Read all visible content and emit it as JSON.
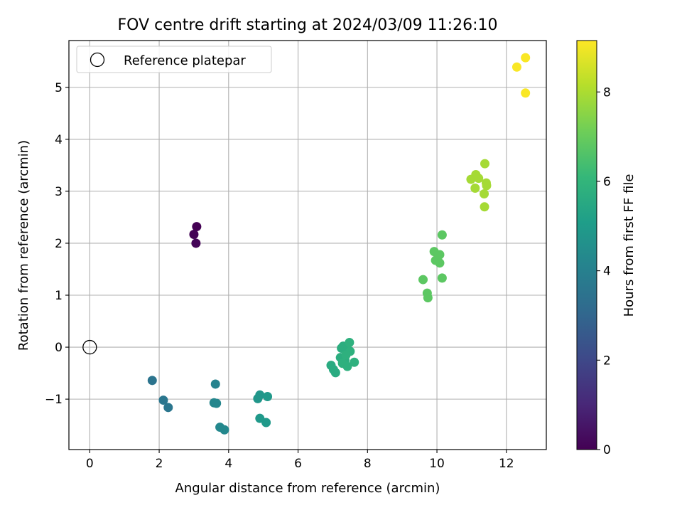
{
  "chart_data": {
    "type": "scatter",
    "title": "FOV centre drift starting at 2024/03/09 11:26:10",
    "xlabel": "Angular distance from reference (arcmin)",
    "ylabel": "Rotation from reference (arcmin)",
    "xlim": [
      -0.6,
      13.15
    ],
    "ylim": [
      -1.97,
      5.9
    ],
    "xticks": [
      0,
      2,
      4,
      6,
      8,
      10,
      12
    ],
    "xtick_labels": [
      "0",
      "2",
      "4",
      "6",
      "8",
      "10",
      "12"
    ],
    "yticks": [
      -1,
      0,
      1,
      2,
      3,
      4,
      5
    ],
    "ytick_labels": [
      "−1",
      "0",
      "1",
      "2",
      "3",
      "4",
      "5"
    ],
    "grid": true,
    "legend": {
      "placement": "top-left",
      "entries": [
        "Reference platepar"
      ]
    },
    "reference_point": {
      "x": 0,
      "y": 0
    },
    "colorbar": {
      "label": "Hours from first FF file",
      "range": [
        0,
        9.15
      ],
      "ticks": [
        0,
        2,
        4,
        6,
        8
      ],
      "tick_labels": [
        "0",
        "2",
        "4",
        "6",
        "8"
      ],
      "colormap": "viridis",
      "colormap_stops": [
        "#440154",
        "#482878",
        "#3e4989",
        "#31688e",
        "#26828e",
        "#1f9e89",
        "#35b779",
        "#6ece58",
        "#b5de2b",
        "#fde725"
      ]
    },
    "points": [
      {
        "x": 3.08,
        "y": 2.32,
        "t": 0.0
      },
      {
        "x": 3.0,
        "y": 2.17,
        "t": 0.05
      },
      {
        "x": 3.06,
        "y": 2.0,
        "t": 0.1
      },
      {
        "x": 1.8,
        "y": -0.64,
        "t": 3.5
      },
      {
        "x": 2.12,
        "y": -1.02,
        "t": 3.6
      },
      {
        "x": 2.26,
        "y": -1.16,
        "t": 3.6
      },
      {
        "x": 3.62,
        "y": -0.71,
        "t": 4.1
      },
      {
        "x": 3.58,
        "y": -1.07,
        "t": 4.2
      },
      {
        "x": 3.65,
        "y": -1.08,
        "t": 4.2
      },
      {
        "x": 3.75,
        "y": -1.54,
        "t": 4.3
      },
      {
        "x": 3.88,
        "y": -1.59,
        "t": 4.3
      },
      {
        "x": 4.9,
        "y": -0.92,
        "t": 4.8
      },
      {
        "x": 4.84,
        "y": -0.99,
        "t": 4.8
      },
      {
        "x": 5.12,
        "y": -0.95,
        "t": 4.9
      },
      {
        "x": 4.9,
        "y": -1.37,
        "t": 4.9
      },
      {
        "x": 5.08,
        "y": -1.45,
        "t": 4.9
      },
      {
        "x": 6.95,
        "y": -0.35,
        "t": 5.6
      },
      {
        "x": 7.02,
        "y": -0.43,
        "t": 5.6
      },
      {
        "x": 7.08,
        "y": -0.49,
        "t": 5.6
      },
      {
        "x": 7.25,
        "y": -0.02,
        "t": 5.7
      },
      {
        "x": 7.3,
        "y": 0.02,
        "t": 5.7
      },
      {
        "x": 7.42,
        "y": -0.05,
        "t": 5.7
      },
      {
        "x": 7.48,
        "y": 0.09,
        "t": 5.8
      },
      {
        "x": 7.22,
        "y": -0.2,
        "t": 5.7
      },
      {
        "x": 7.35,
        "y": -0.25,
        "t": 5.7
      },
      {
        "x": 7.5,
        "y": -0.08,
        "t": 5.8
      },
      {
        "x": 7.28,
        "y": -0.31,
        "t": 5.8
      },
      {
        "x": 7.42,
        "y": -0.37,
        "t": 5.8
      },
      {
        "x": 7.62,
        "y": -0.29,
        "t": 5.8
      },
      {
        "x": 7.38,
        "y": -0.15,
        "t": 5.8
      },
      {
        "x": 10.15,
        "y": 2.16,
        "t": 6.8
      },
      {
        "x": 9.92,
        "y": 1.84,
        "t": 6.8
      },
      {
        "x": 10.08,
        "y": 1.78,
        "t": 6.8
      },
      {
        "x": 9.96,
        "y": 1.67,
        "t": 6.8
      },
      {
        "x": 10.08,
        "y": 1.62,
        "t": 6.8
      },
      {
        "x": 9.6,
        "y": 1.3,
        "t": 6.8
      },
      {
        "x": 10.15,
        "y": 1.33,
        "t": 6.8
      },
      {
        "x": 9.72,
        "y": 1.04,
        "t": 6.8
      },
      {
        "x": 9.74,
        "y": 0.95,
        "t": 6.8
      },
      {
        "x": 11.38,
        "y": 3.53,
        "t": 7.9
      },
      {
        "x": 11.12,
        "y": 3.32,
        "t": 7.9
      },
      {
        "x": 10.98,
        "y": 3.23,
        "t": 7.9
      },
      {
        "x": 11.2,
        "y": 3.25,
        "t": 7.9
      },
      {
        "x": 11.42,
        "y": 3.16,
        "t": 7.9
      },
      {
        "x": 11.43,
        "y": 3.11,
        "t": 7.9
      },
      {
        "x": 11.1,
        "y": 3.06,
        "t": 7.9
      },
      {
        "x": 11.36,
        "y": 2.95,
        "t": 7.9
      },
      {
        "x": 11.37,
        "y": 2.7,
        "t": 7.9
      },
      {
        "x": 12.55,
        "y": 5.57,
        "t": 9.1
      },
      {
        "x": 12.3,
        "y": 5.39,
        "t": 9.1
      },
      {
        "x": 12.55,
        "y": 4.89,
        "t": 9.1
      }
    ]
  }
}
